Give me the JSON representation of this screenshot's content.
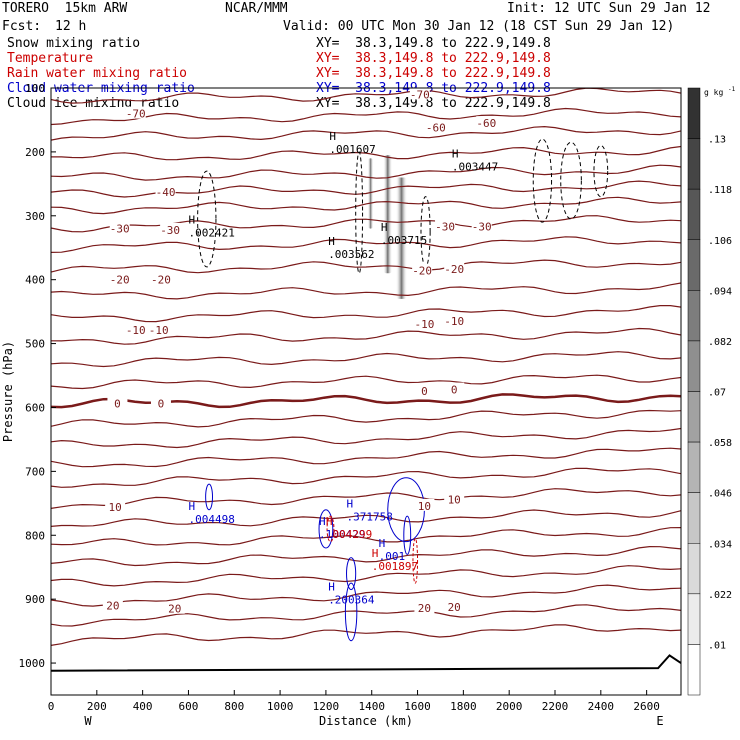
{
  "header": {
    "model": "TORERO  15km ARW",
    "org": "NCAR/MMM",
    "init": "Init: 12 UTC Sun 29 Jan 12",
    "fcst_label": "Fcst:",
    "fcst_value": "12 h",
    "valid": "Valid: 00 UTC Mon 30 Jan 12 (18 CST Sun 29 Jan 12)",
    "fields": [
      {
        "name": "Snow mixing ratio",
        "xy": "XY=  38.3,149.8 to 222.9,149.8",
        "color": "#000000"
      },
      {
        "name": "Temperature",
        "xy": "XY=  38.3,149.8 to 222.9,149.8",
        "color": "#cc0000"
      },
      {
        "name": "Rain water mixing ratio",
        "xy": "XY=  38.3,149.8 to 222.9,149.8",
        "color": "#cc0000"
      },
      {
        "name": "Cloud water mixing ratio",
        "xy": "XY=  38.3,149.8 to 222.9,149.8",
        "color": "#0000cc"
      },
      {
        "name": "Cloud ice mixing ratio",
        "xy": "XY=  38.3,149.8 to 222.9,149.8",
        "color": "#000000"
      }
    ]
  },
  "chart_data": {
    "type": "contour",
    "xlabel": "Distance (km)",
    "ylabel": "Pressure (hPa)",
    "xlim": [
      0,
      2750
    ],
    "ylim": [
      1050,
      100
    ],
    "x_ticks": [
      0,
      200,
      400,
      600,
      800,
      1000,
      1200,
      1400,
      1600,
      1800,
      2000,
      2200,
      2400,
      2600
    ],
    "y_ticks": [
      100,
      200,
      300,
      400,
      500,
      600,
      700,
      800,
      900,
      1000
    ],
    "x_end_labels": {
      "left": "W",
      "right": "E"
    },
    "colorbar": {
      "unit": "g kg",
      "unit_exp": "-1",
      "ticks": [
        ".13",
        ".118",
        ".106",
        ".094",
        ".082",
        ".07",
        ".058",
        ".046",
        ".034",
        ".022",
        ".01"
      ]
    },
    "temperature_contour_labels": [
      {
        "label": "-70",
        "x": 1610,
        "p": 110
      },
      {
        "label": "-70",
        "x": 370,
        "p": 140
      },
      {
        "label": "-60",
        "x": 1680,
        "p": 162
      },
      {
        "label": "-60",
        "x": 1900,
        "p": 155
      },
      {
        "label": "-40",
        "x": 500,
        "p": 263
      },
      {
        "label": "-30",
        "x": 300,
        "p": 320
      },
      {
        "label": "-30",
        "x": 520,
        "p": 322
      },
      {
        "label": "-30",
        "x": 1720,
        "p": 317
      },
      {
        "label": "-30",
        "x": 1880,
        "p": 317
      },
      {
        "label": "-20",
        "x": 300,
        "p": 400
      },
      {
        "label": "-20",
        "x": 480,
        "p": 400
      },
      {
        "label": "-20",
        "x": 1620,
        "p": 386
      },
      {
        "label": "-20",
        "x": 1760,
        "p": 383
      },
      {
        "label": "-10",
        "x": 370,
        "p": 479
      },
      {
        "label": "-10",
        "x": 470,
        "p": 479
      },
      {
        "label": "-10",
        "x": 1630,
        "p": 469
      },
      {
        "label": "-10",
        "x": 1760,
        "p": 465
      },
      {
        "label": "0",
        "x": 290,
        "p": 594
      },
      {
        "label": "0",
        "x": 480,
        "p": 594
      },
      {
        "label": "0",
        "x": 1630,
        "p": 574
      },
      {
        "label": "0",
        "x": 1760,
        "p": 572
      },
      {
        "label": "10",
        "x": 280,
        "p": 756
      },
      {
        "label": "10",
        "x": 1630,
        "p": 754
      },
      {
        "label": "10",
        "x": 1760,
        "p": 744
      },
      {
        "label": "20",
        "x": 270,
        "p": 910
      },
      {
        "label": "20",
        "x": 540,
        "p": 915
      },
      {
        "label": "20",
        "x": 1630,
        "p": 914
      },
      {
        "label": "20",
        "x": 1760,
        "p": 912
      }
    ],
    "extremum_labels": [
      {
        "mark": "H",
        "value": ".001607",
        "x": 1215,
        "p": 188,
        "color": "#000000"
      },
      {
        "mark": "H",
        "value": ".003447",
        "x": 1750,
        "p": 215,
        "color": "#000000"
      },
      {
        "mark": "H",
        "value": ".002421",
        "x": 600,
        "p": 318,
        "color": "#000000"
      },
      {
        "mark": "H",
        "value": ".003562",
        "x": 1210,
        "p": 352,
        "color": "#000000"
      },
      {
        "mark": "H",
        "value": ".003715",
        "x": 1440,
        "p": 330,
        "color": "#000000"
      },
      {
        "mark": "H",
        "value": ".004498",
        "x": 600,
        "p": 767,
        "color": "#0000cc"
      },
      {
        "mark": "H",
        "value": ".100429",
        "x": 1170,
        "p": 790,
        "color": "#0000cc"
      },
      {
        "mark": "H",
        "value": ".004299",
        "x": 1200,
        "p": 790,
        "color": "#cc0000"
      },
      {
        "mark": "H",
        "value": ".371758",
        "x": 1290,
        "p": 763,
        "color": "#0000cc"
      },
      {
        "mark": "H",
        "value": ".001",
        "x": 1430,
        "p": 825,
        "color": "#0000cc"
      },
      {
        "mark": "H",
        "value": ".001897",
        "x": 1400,
        "p": 840,
        "color": "#cc0000"
      },
      {
        "mark": "H",
        "value": ".200364",
        "x": 1210,
        "p": 893,
        "color": "#0000cc"
      }
    ]
  }
}
